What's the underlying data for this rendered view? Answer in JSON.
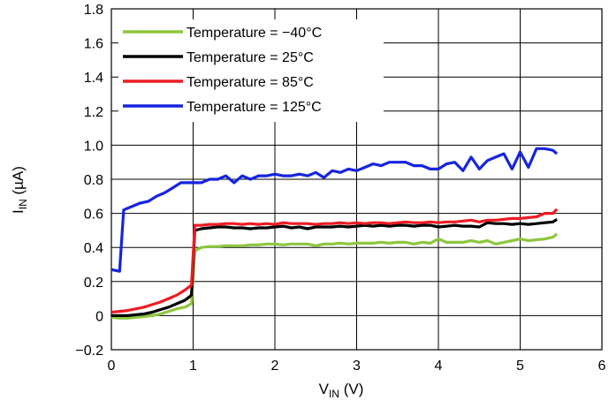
{
  "chart_data": {
    "type": "line",
    "xlabel": {
      "main": "V",
      "sub": "IN",
      "unit": " (V)"
    },
    "ylabel": {
      "main": "I",
      "sub": "IN",
      "unit": " (µA)"
    },
    "xlim": [
      0,
      6
    ],
    "ylim": [
      -0.2,
      1.8
    ],
    "x_ticks": [
      "0",
      "1",
      "2",
      "3",
      "4",
      "5",
      "6"
    ],
    "y_ticks": [
      "−0.2",
      "0",
      "0.2",
      "0.4",
      "0.6",
      "0.8",
      "1.0",
      "1.2",
      "1.4",
      "1.6",
      "1.8"
    ],
    "grid": true,
    "legend_position": "top-left",
    "series": [
      {
        "name": "Temperature = −40°C",
        "color": "#8dc63f",
        "x": [
          0,
          0.1,
          0.2,
          0.3,
          0.4,
          0.5,
          0.6,
          0.7,
          0.8,
          0.9,
          0.98,
          1.02,
          1.1,
          1.2,
          1.3,
          1.4,
          1.5,
          1.6,
          1.7,
          1.8,
          1.9,
          2.0,
          2.1,
          2.2,
          2.3,
          2.4,
          2.5,
          2.6,
          2.7,
          2.8,
          2.9,
          3.0,
          3.1,
          3.2,
          3.3,
          3.4,
          3.5,
          3.6,
          3.7,
          3.8,
          3.9,
          4.0,
          4.1,
          4.2,
          4.3,
          4.4,
          4.5,
          4.6,
          4.7,
          4.8,
          4.9,
          5.0,
          5.1,
          5.2,
          5.3,
          5.4,
          5.45
        ],
        "y": [
          -0.01,
          -0.015,
          -0.015,
          -0.01,
          -0.005,
          0.0,
          0.01,
          0.025,
          0.04,
          0.05,
          0.07,
          0.38,
          0.4,
          0.405,
          0.405,
          0.41,
          0.41,
          0.41,
          0.415,
          0.415,
          0.42,
          0.42,
          0.415,
          0.42,
          0.42,
          0.42,
          0.41,
          0.42,
          0.42,
          0.425,
          0.42,
          0.425,
          0.425,
          0.425,
          0.43,
          0.425,
          0.43,
          0.43,
          0.42,
          0.43,
          0.425,
          0.45,
          0.43,
          0.43,
          0.43,
          0.44,
          0.43,
          0.44,
          0.42,
          0.43,
          0.44,
          0.45,
          0.44,
          0.445,
          0.45,
          0.46,
          0.48
        ]
      },
      {
        "name": "Temperature = 25°C",
        "color": "#000000",
        "x": [
          0,
          0.1,
          0.2,
          0.3,
          0.4,
          0.5,
          0.6,
          0.7,
          0.8,
          0.9,
          0.98,
          1.02,
          1.1,
          1.2,
          1.3,
          1.4,
          1.5,
          1.6,
          1.7,
          1.8,
          1.9,
          2.0,
          2.1,
          2.2,
          2.3,
          2.4,
          2.5,
          2.6,
          2.7,
          2.8,
          2.9,
          3.0,
          3.1,
          3.2,
          3.3,
          3.4,
          3.5,
          3.6,
          3.7,
          3.8,
          3.9,
          4.0,
          4.1,
          4.2,
          4.3,
          4.4,
          4.5,
          4.6,
          4.7,
          4.8,
          4.9,
          5.0,
          5.1,
          5.2,
          5.3,
          5.4,
          5.45
        ],
        "y": [
          0.0,
          0.0,
          0.0,
          0.005,
          0.01,
          0.02,
          0.035,
          0.05,
          0.07,
          0.09,
          0.12,
          0.5,
          0.51,
          0.515,
          0.52,
          0.52,
          0.515,
          0.515,
          0.51,
          0.515,
          0.515,
          0.52,
          0.525,
          0.515,
          0.52,
          0.51,
          0.52,
          0.52,
          0.52,
          0.525,
          0.52,
          0.525,
          0.53,
          0.525,
          0.53,
          0.525,
          0.53,
          0.53,
          0.525,
          0.53,
          0.53,
          0.52,
          0.525,
          0.53,
          0.525,
          0.525,
          0.52,
          0.545,
          0.54,
          0.54,
          0.535,
          0.54,
          0.535,
          0.54,
          0.545,
          0.55,
          0.565
        ]
      },
      {
        "name": "Temperature = 85°C",
        "color": "#ed1c24",
        "x": [
          0,
          0.1,
          0.2,
          0.3,
          0.4,
          0.5,
          0.6,
          0.7,
          0.8,
          0.9,
          0.98,
          1.02,
          1.1,
          1.2,
          1.3,
          1.4,
          1.5,
          1.6,
          1.7,
          1.8,
          1.9,
          2.0,
          2.1,
          2.2,
          2.3,
          2.4,
          2.5,
          2.6,
          2.7,
          2.8,
          2.9,
          3.0,
          3.1,
          3.2,
          3.3,
          3.4,
          3.5,
          3.6,
          3.7,
          3.8,
          3.9,
          4.0,
          4.1,
          4.2,
          4.3,
          4.4,
          4.5,
          4.6,
          4.7,
          4.8,
          4.9,
          5.0,
          5.1,
          5.2,
          5.3,
          5.4,
          5.45
        ],
        "y": [
          0.02,
          0.025,
          0.03,
          0.04,
          0.05,
          0.065,
          0.08,
          0.1,
          0.12,
          0.15,
          0.18,
          0.53,
          0.53,
          0.535,
          0.535,
          0.54,
          0.54,
          0.535,
          0.54,
          0.535,
          0.54,
          0.535,
          0.545,
          0.54,
          0.54,
          0.54,
          0.535,
          0.54,
          0.54,
          0.545,
          0.54,
          0.545,
          0.54,
          0.545,
          0.545,
          0.54,
          0.545,
          0.55,
          0.545,
          0.545,
          0.55,
          0.545,
          0.55,
          0.55,
          0.555,
          0.56,
          0.55,
          0.56,
          0.56,
          0.565,
          0.57,
          0.57,
          0.575,
          0.58,
          0.6,
          0.6,
          0.625
        ]
      },
      {
        "name": "Temperature = 125°C",
        "color": "#1624e0",
        "x": [
          0,
          0.1,
          0.15,
          0.25,
          0.35,
          0.45,
          0.55,
          0.65,
          0.75,
          0.85,
          0.95,
          1.0,
          1.1,
          1.2,
          1.3,
          1.4,
          1.5,
          1.6,
          1.7,
          1.8,
          1.9,
          2.0,
          2.1,
          2.2,
          2.3,
          2.4,
          2.5,
          2.6,
          2.7,
          2.8,
          2.9,
          3.0,
          3.1,
          3.2,
          3.3,
          3.4,
          3.5,
          3.6,
          3.7,
          3.8,
          3.9,
          4.0,
          4.1,
          4.2,
          4.3,
          4.4,
          4.5,
          4.6,
          4.7,
          4.8,
          4.9,
          5.0,
          5.1,
          5.2,
          5.3,
          5.4,
          5.45
        ],
        "y": [
          0.27,
          0.26,
          0.62,
          0.64,
          0.66,
          0.67,
          0.7,
          0.72,
          0.75,
          0.78,
          0.78,
          0.78,
          0.78,
          0.8,
          0.8,
          0.82,
          0.78,
          0.82,
          0.8,
          0.82,
          0.82,
          0.83,
          0.82,
          0.82,
          0.83,
          0.82,
          0.84,
          0.81,
          0.85,
          0.84,
          0.86,
          0.85,
          0.87,
          0.89,
          0.88,
          0.9,
          0.9,
          0.9,
          0.88,
          0.88,
          0.86,
          0.86,
          0.89,
          0.9,
          0.85,
          0.93,
          0.86,
          0.91,
          0.93,
          0.95,
          0.86,
          0.96,
          0.87,
          0.98,
          0.98,
          0.97,
          0.95
        ]
      }
    ]
  }
}
